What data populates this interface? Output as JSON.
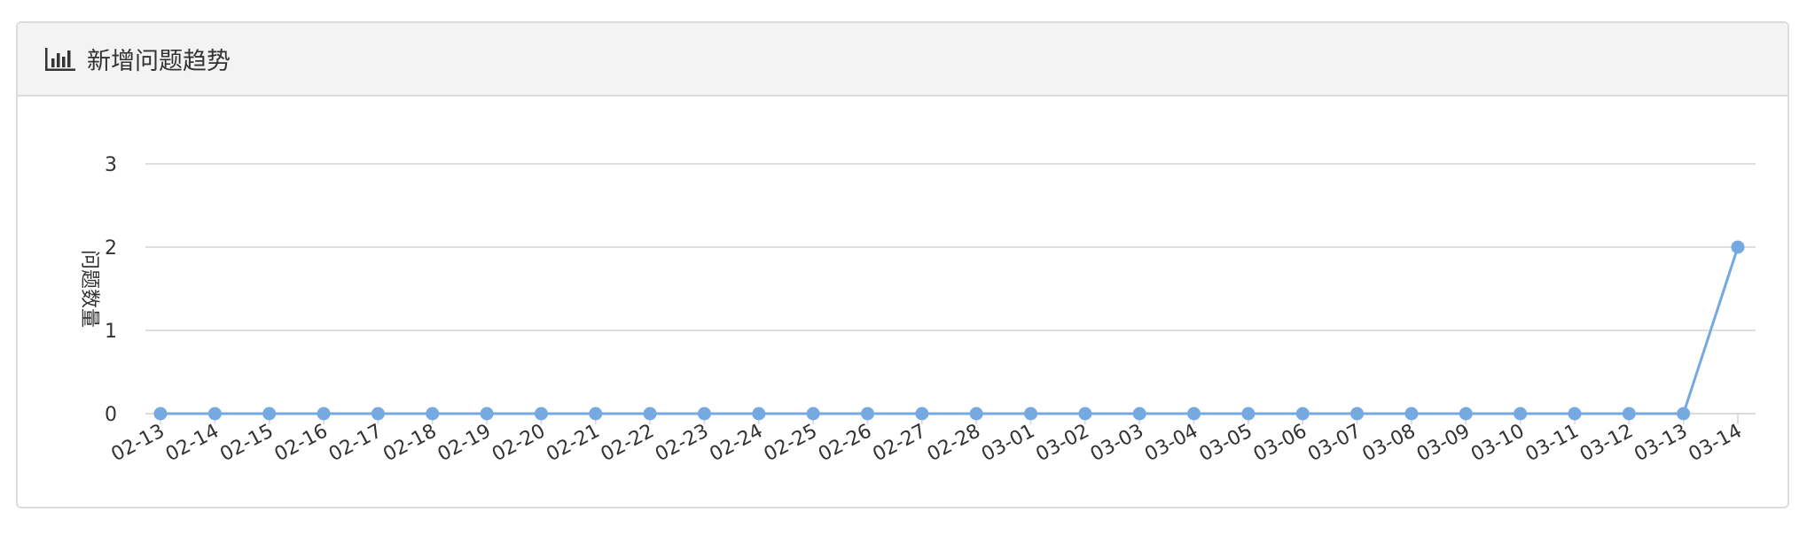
{
  "panel": {
    "title": "新增问题趋势",
    "icon": "bar-chart-icon"
  },
  "colors": {
    "series": "#74a9e1",
    "grid": "#d6d6d6",
    "text": "#333333"
  },
  "chart_data": {
    "type": "line",
    "title": "",
    "xlabel": "",
    "ylabel": "问题数量",
    "ylim": [
      0,
      3
    ],
    "yticks": [
      0,
      1,
      2,
      3
    ],
    "grid": true,
    "categories": [
      "02-13",
      "02-14",
      "02-15",
      "02-16",
      "02-17",
      "02-18",
      "02-19",
      "02-20",
      "02-21",
      "02-22",
      "02-23",
      "02-24",
      "02-25",
      "02-26",
      "02-27",
      "02-28",
      "03-01",
      "03-02",
      "03-03",
      "03-04",
      "03-05",
      "03-06",
      "03-07",
      "03-08",
      "03-09",
      "03-10",
      "03-11",
      "03-12",
      "03-13",
      "03-14"
    ],
    "series": [
      {
        "values": [
          0,
          0,
          0,
          0,
          0,
          0,
          0,
          0,
          0,
          0,
          0,
          0,
          0,
          0,
          0,
          0,
          0,
          0,
          0,
          0,
          0,
          0,
          0,
          0,
          0,
          0,
          0,
          0,
          0,
          2
        ]
      }
    ]
  }
}
